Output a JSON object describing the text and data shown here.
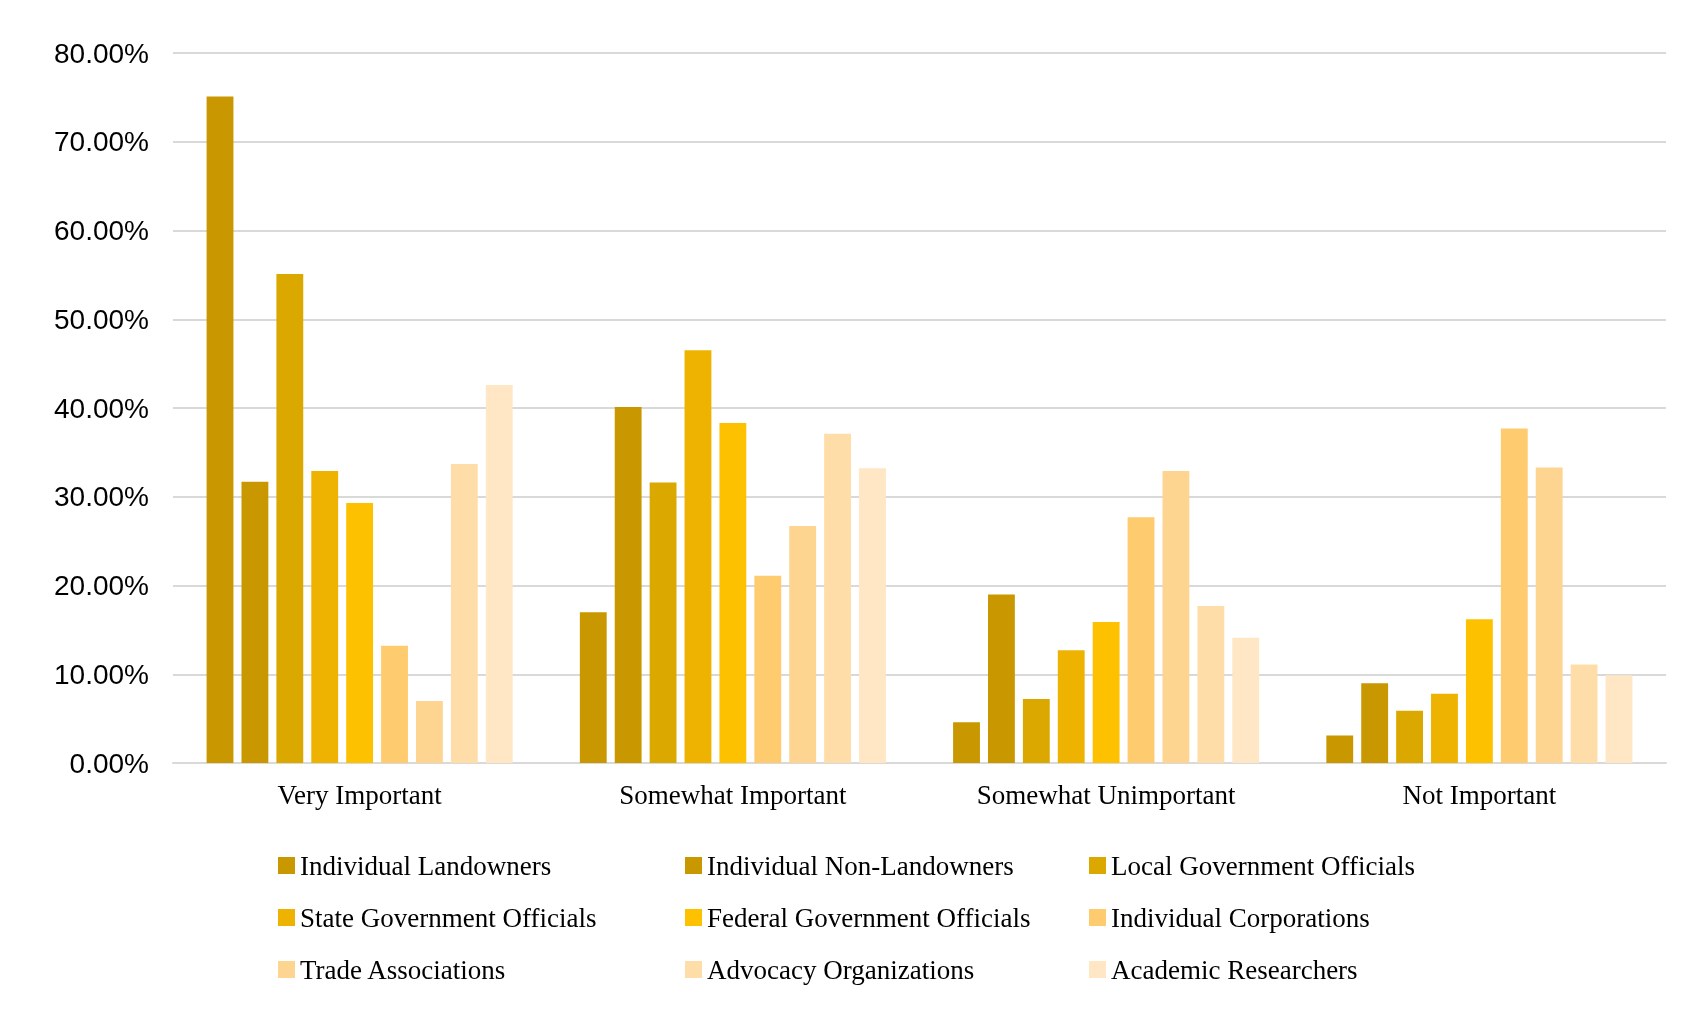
{
  "chart_data": {
    "type": "bar",
    "categories": [
      "Very Important",
      "Somewhat Important",
      "Somewhat Unimportant",
      "Not Important"
    ],
    "series": [
      {
        "name": "Individual Landowners",
        "color": "#c99700",
        "values": [
          75.1,
          17.0,
          4.6,
          3.1
        ]
      },
      {
        "name": "Individual Non-Landowners",
        "color": "#c99700",
        "values": [
          31.7,
          40.1,
          19.0,
          9.0
        ]
      },
      {
        "name": "Local Government Officials",
        "color": "#dba800",
        "values": [
          55.1,
          31.6,
          7.2,
          5.9
        ]
      },
      {
        "name": "State Government Officials",
        "color": "#eeb300",
        "values": [
          32.9,
          46.5,
          12.7,
          7.8
        ]
      },
      {
        "name": "Federal Government Officials",
        "color": "#fdc100",
        "values": [
          29.3,
          38.3,
          15.9,
          16.2
        ]
      },
      {
        "name": "Individual Corporations",
        "color": "#fecb6e",
        "values": [
          13.2,
          21.1,
          27.7,
          37.7
        ]
      },
      {
        "name": "Trade Associations",
        "color": "#fed590",
        "values": [
          7.0,
          26.7,
          32.9,
          33.3
        ]
      },
      {
        "name": "Advocacy Organizations",
        "color": "#fedda9",
        "values": [
          33.7,
          37.1,
          17.7,
          11.1
        ]
      },
      {
        "name": "Academic Researchers",
        "color": "#ffe6c5",
        "values": [
          42.6,
          33.2,
          14.1,
          9.9
        ]
      }
    ],
    "ylim": [
      0,
      80
    ],
    "yticks": [
      {
        "value": 0,
        "label": "0.00%"
      },
      {
        "value": 10,
        "label": "10.00%"
      },
      {
        "value": 20,
        "label": "20.00%"
      },
      {
        "value": 30,
        "label": "30.00%"
      },
      {
        "value": 40,
        "label": "40.00%"
      },
      {
        "value": 50,
        "label": "50.00%"
      },
      {
        "value": 60,
        "label": "60.00%"
      },
      {
        "value": 70,
        "label": "70.00%"
      },
      {
        "value": 80,
        "label": "80.00%"
      }
    ],
    "grid": "y",
    "legend": "bottom"
  }
}
